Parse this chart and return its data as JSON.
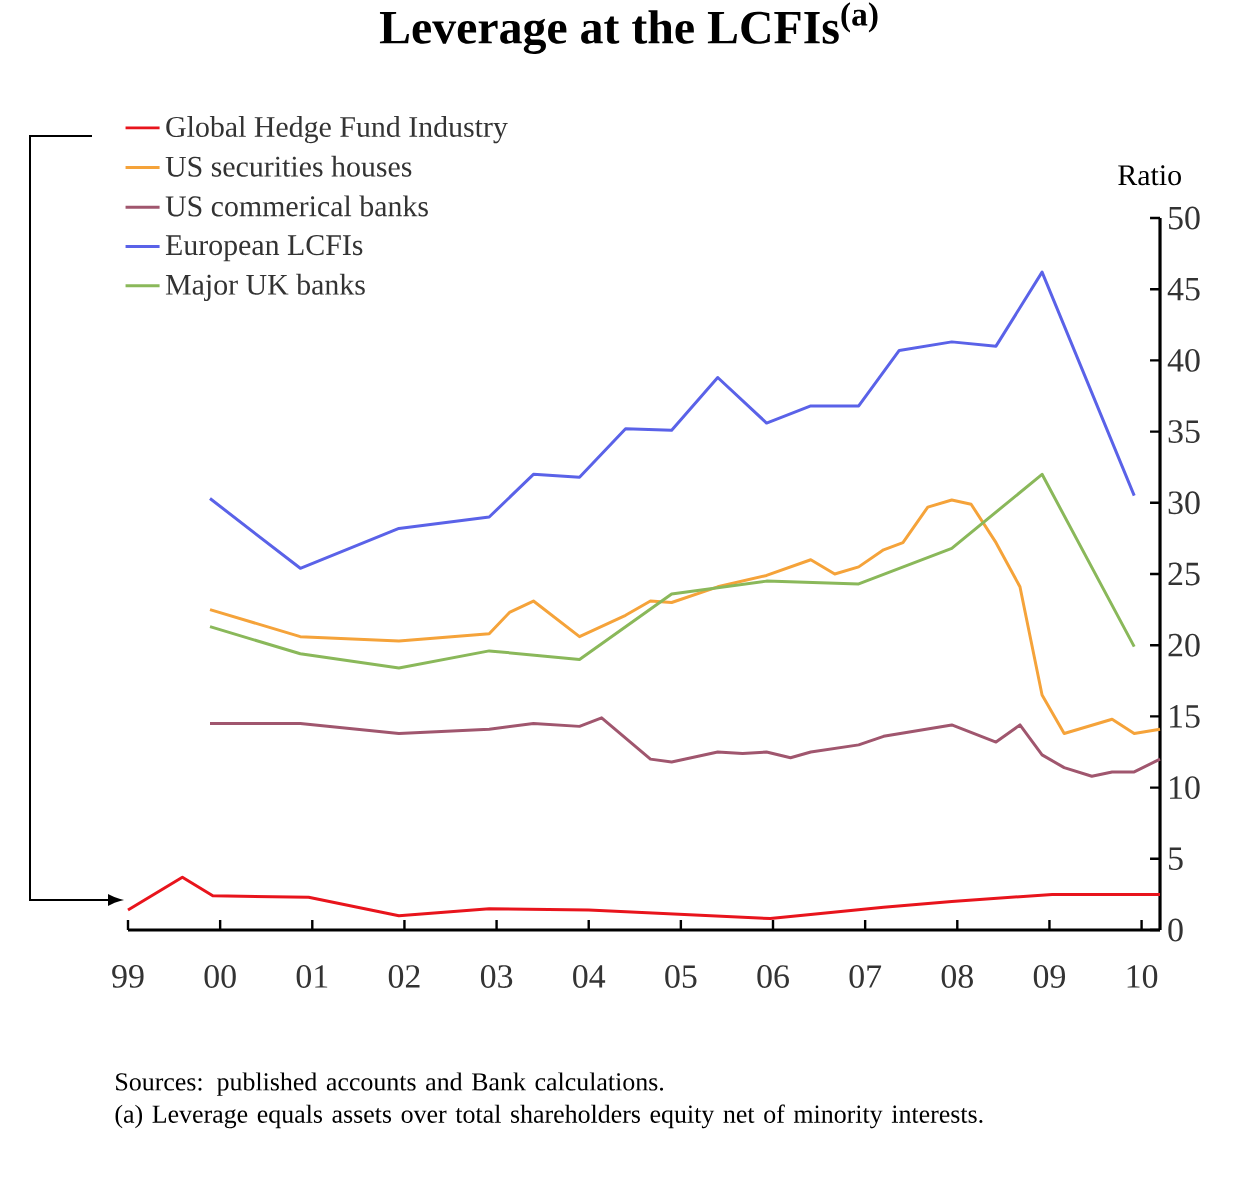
{
  "chart_data": {
    "type": "line",
    "title": "Leverage at the LCFIs$^{(a)}$",
    "ylabel": "Ratio",
    "legend": "top left",
    "marker": "none",
    "line_style": "solid",
    "xlim": [
      1999,
      2010.2
    ],
    "ylim": [
      0,
      50
    ],
    "xticks": [
      {
        "value": 1999,
        "label": "99"
      },
      {
        "value": 2000,
        "label": "00"
      },
      {
        "value": 2001,
        "label": "01"
      },
      {
        "value": 2002,
        "label": "02"
      },
      {
        "value": 2003,
        "label": "03"
      },
      {
        "value": 2004,
        "label": "04"
      },
      {
        "value": 2005,
        "label": "05"
      },
      {
        "value": 2006,
        "label": "06"
      },
      {
        "value": 2007,
        "label": "07"
      },
      {
        "value": 2008,
        "label": "08"
      },
      {
        "value": 2009,
        "label": "09"
      },
      {
        "value": 2010,
        "label": "10"
      }
    ],
    "yticks": [
      0,
      5,
      10,
      15,
      20,
      25,
      30,
      35,
      40,
      45,
      50
    ],
    "series": [
      {
        "name": "Global Hedge Fund Industry",
        "color": "#e8141c",
        "x": [
          1999.0,
          1999.59,
          1999.92,
          2000.96,
          2001.94,
          2002.92,
          2004.0,
          2005.97,
          2007.2,
          2007.94,
          2009.03,
          2010.2
        ],
        "values": [
          1.4,
          3.7,
          2.4,
          2.3,
          1.0,
          1.5,
          1.4,
          0.8,
          1.6,
          2.0,
          2.5,
          2.5
        ]
      },
      {
        "name": "US securities houses",
        "color": "#f5a33a",
        "x": [
          1999.89,
          2000.87,
          2001.94,
          2002.92,
          2003.14,
          2003.4,
          2003.9,
          2004.4,
          2004.67,
          2004.9,
          2005.4,
          2005.93,
          2006.41,
          2006.67,
          2006.93,
          2007.2,
          2007.41,
          2007.68,
          2007.94,
          2008.15,
          2008.42,
          2008.68,
          2008.92,
          2009.16,
          2009.68,
          2009.92,
          2010.2
        ],
        "values": [
          22.5,
          20.6,
          20.3,
          20.8,
          22.3,
          23.1,
          20.6,
          22.1,
          23.1,
          23.0,
          24.1,
          24.9,
          26.0,
          25.0,
          25.5,
          26.7,
          27.2,
          29.7,
          30.2,
          29.9,
          27.2,
          24.1,
          16.5,
          13.8,
          14.8,
          13.8,
          14.1
        ]
      },
      {
        "name": "US commerical banks",
        "color": "#a0566e",
        "x": [
          1999.89,
          2000.87,
          2001.94,
          2002.92,
          2003.4,
          2003.9,
          2004.14,
          2004.67,
          2004.9,
          2005.4,
          2005.67,
          2005.93,
          2006.19,
          2006.41,
          2006.93,
          2007.2,
          2007.94,
          2008.42,
          2008.68,
          2008.92,
          2009.16,
          2009.46,
          2009.68,
          2009.92,
          2010.2
        ],
        "values": [
          14.5,
          14.5,
          13.8,
          14.1,
          14.5,
          14.3,
          14.9,
          12.0,
          11.8,
          12.5,
          12.4,
          12.5,
          12.1,
          12.5,
          13.0,
          13.6,
          14.4,
          13.2,
          14.4,
          12.3,
          11.4,
          10.8,
          11.1,
          11.1,
          12.0
        ]
      },
      {
        "name": "European LCFIs",
        "color": "#5a62e8",
        "x": [
          1999.89,
          2000.87,
          2001.94,
          2002.92,
          2003.4,
          2003.9,
          2004.4,
          2004.9,
          2005.4,
          2005.93,
          2006.41,
          2006.93,
          2007.37,
          2007.94,
          2008.42,
          2008.92,
          2009.92
        ],
        "values": [
          30.3,
          25.4,
          28.2,
          29.0,
          32.0,
          31.8,
          35.2,
          35.1,
          38.8,
          35.6,
          36.8,
          36.8,
          40.7,
          41.3,
          41.0,
          46.2,
          30.5
        ]
      },
      {
        "name": "Major UK banks",
        "color": "#8ab85a",
        "x": [
          1999.89,
          2000.87,
          2001.94,
          2002.92,
          2003.9,
          2004.9,
          2005.93,
          2006.93,
          2007.94,
          2008.92,
          2009.92
        ],
        "values": [
          21.3,
          19.4,
          18.4,
          19.6,
          19.0,
          23.6,
          24.5,
          24.3,
          26.8,
          32.0,
          19.9
        ]
      }
    ],
    "annotations": [
      "Sources: published accounts and Bank calculations.",
      "(a) Leverage equals assets over total shareholders equity net of minority interests."
    ]
  }
}
